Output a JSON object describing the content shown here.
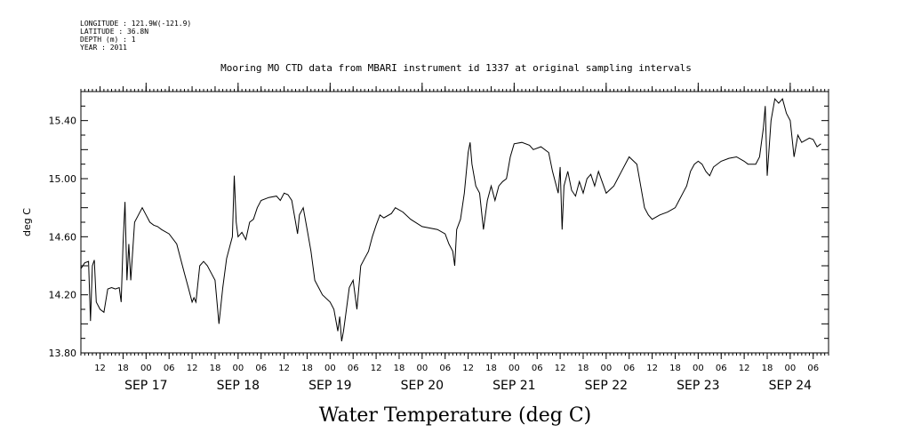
{
  "metadata": {
    "longitude": "LONGITUDE : 121.9W(-121.9)",
    "latitude": "LATITUDE : 36.8N",
    "depth": "DEPTH (m) : 1",
    "year": "YEAR : 2011"
  },
  "chart_data": {
    "type": "line",
    "title": "Mooring MO CTD data from MBARI instrument id 1337 at original sampling intervals",
    "xlabel": "Water Temperature (deg C)",
    "ylabel": "deg C",
    "ylim": [
      13.8,
      15.6
    ],
    "xlim": [
      "2011-09-16 07:00",
      "2011-09-24 10:00"
    ],
    "y_ticks": [
      "13.80",
      "14.20",
      "14.60",
      "15.00",
      "15.40"
    ],
    "hour_ticks": [
      "12",
      "18",
      "00",
      "06",
      "12",
      "18",
      "00",
      "06",
      "12",
      "18",
      "00",
      "06",
      "12",
      "18",
      "00",
      "06",
      "12",
      "18",
      "00",
      "06",
      "12",
      "18",
      "00",
      "06",
      "12",
      "18",
      "00",
      "06",
      "12",
      "18",
      "00",
      "06"
    ],
    "date_ticks": [
      {
        "label": "SEP 17",
        "x": "2011-09-17 00:00"
      },
      {
        "label": "SEP 18",
        "x": "2011-09-18 00:00"
      },
      {
        "label": "SEP 19",
        "x": "2011-09-19 00:00"
      },
      {
        "label": "SEP 20",
        "x": "2011-09-20 00:00"
      },
      {
        "label": "SEP 21",
        "x": "2011-09-21 00:00"
      },
      {
        "label": "SEP 22",
        "x": "2011-09-22 00:00"
      },
      {
        "label": "SEP 23",
        "x": "2011-09-23 00:00"
      },
      {
        "label": "SEP 24",
        "x": "2011-09-24 00:00"
      }
    ],
    "grid": false,
    "series": [
      {
        "color": "#000000",
        "points": [
          [
            "2011-09-16 07:00",
            14.38
          ],
          [
            "2011-09-16 08:00",
            14.42
          ],
          [
            "2011-09-16 09:00",
            14.43
          ],
          [
            "2011-09-16 09:30",
            14.02
          ],
          [
            "2011-09-16 10:00",
            14.4
          ],
          [
            "2011-09-16 10:30",
            14.44
          ],
          [
            "2011-09-16 11:00",
            14.15
          ],
          [
            "2011-09-16 12:00",
            14.1
          ],
          [
            "2011-09-16 13:00",
            14.08
          ],
          [
            "2011-09-16 14:00",
            14.24
          ],
          [
            "2011-09-16 15:00",
            14.25
          ],
          [
            "2011-09-16 16:00",
            14.24
          ],
          [
            "2011-09-16 17:00",
            14.25
          ],
          [
            "2011-09-16 17:30",
            14.15
          ],
          [
            "2011-09-16 18:00",
            14.55
          ],
          [
            "2011-09-16 18:30",
            14.84
          ],
          [
            "2011-09-16 19:00",
            14.3
          ],
          [
            "2011-09-16 19:30",
            14.55
          ],
          [
            "2011-09-16 20:00",
            14.3
          ],
          [
            "2011-09-16 21:00",
            14.7
          ],
          [
            "2011-09-16 22:00",
            14.75
          ],
          [
            "2011-09-16 23:00",
            14.8
          ],
          [
            "2011-09-17 00:00",
            14.75
          ],
          [
            "2011-09-17 01:00",
            14.7
          ],
          [
            "2011-09-17 02:00",
            14.68
          ],
          [
            "2011-09-17 03:00",
            14.67
          ],
          [
            "2011-09-17 04:00",
            14.65
          ],
          [
            "2011-09-17 06:00",
            14.62
          ],
          [
            "2011-09-17 08:00",
            14.55
          ],
          [
            "2011-09-17 10:00",
            14.35
          ],
          [
            "2011-09-17 11:00",
            14.25
          ],
          [
            "2011-09-17 12:00",
            14.15
          ],
          [
            "2011-09-17 12:30",
            14.18
          ],
          [
            "2011-09-17 13:00",
            14.15
          ],
          [
            "2011-09-17 14:00",
            14.4
          ],
          [
            "2011-09-17 15:00",
            14.43
          ],
          [
            "2011-09-17 16:00",
            14.4
          ],
          [
            "2011-09-17 17:00",
            14.35
          ],
          [
            "2011-09-17 18:00",
            14.3
          ],
          [
            "2011-09-17 19:00",
            14.0
          ],
          [
            "2011-09-17 20:00",
            14.25
          ],
          [
            "2011-09-17 21:00",
            14.45
          ],
          [
            "2011-09-17 22:00",
            14.55
          ],
          [
            "2011-09-17 22:30",
            14.6
          ],
          [
            "2011-09-17 23:00",
            15.02
          ],
          [
            "2011-09-17 23:30",
            14.7
          ],
          [
            "2011-09-18 00:00",
            14.6
          ],
          [
            "2011-09-18 01:00",
            14.63
          ],
          [
            "2011-09-18 02:00",
            14.58
          ],
          [
            "2011-09-18 03:00",
            14.7
          ],
          [
            "2011-09-18 04:00",
            14.72
          ],
          [
            "2011-09-18 05:00",
            14.8
          ],
          [
            "2011-09-18 06:00",
            14.85
          ],
          [
            "2011-09-18 08:00",
            14.87
          ],
          [
            "2011-09-18 10:00",
            14.88
          ],
          [
            "2011-09-18 11:00",
            14.85
          ],
          [
            "2011-09-18 12:00",
            14.9
          ],
          [
            "2011-09-18 13:00",
            14.89
          ],
          [
            "2011-09-18 14:00",
            14.85
          ],
          [
            "2011-09-18 15:00",
            14.7
          ],
          [
            "2011-09-18 15:30",
            14.62
          ],
          [
            "2011-09-18 16:00",
            14.75
          ],
          [
            "2011-09-18 17:00",
            14.8
          ],
          [
            "2011-09-18 18:00",
            14.65
          ],
          [
            "2011-09-18 19:00",
            14.5
          ],
          [
            "2011-09-18 20:00",
            14.3
          ],
          [
            "2011-09-18 21:00",
            14.25
          ],
          [
            "2011-09-18 22:00",
            14.2
          ],
          [
            "2011-09-19 00:00",
            14.15
          ],
          [
            "2011-09-19 01:00",
            14.1
          ],
          [
            "2011-09-19 02:00",
            13.95
          ],
          [
            "2011-09-19 02:30",
            14.05
          ],
          [
            "2011-09-19 03:00",
            13.88
          ],
          [
            "2011-09-19 03:30",
            13.95
          ],
          [
            "2011-09-19 04:00",
            14.05
          ],
          [
            "2011-09-19 05:00",
            14.25
          ],
          [
            "2011-09-19 06:00",
            14.3
          ],
          [
            "2011-09-19 07:00",
            14.1
          ],
          [
            "2011-09-19 08:00",
            14.4
          ],
          [
            "2011-09-19 09:00",
            14.45
          ],
          [
            "2011-09-19 10:00",
            14.5
          ],
          [
            "2011-09-19 11:00",
            14.6
          ],
          [
            "2011-09-19 12:00",
            14.68
          ],
          [
            "2011-09-19 13:00",
            14.75
          ],
          [
            "2011-09-19 14:00",
            14.73
          ],
          [
            "2011-09-19 16:00",
            14.76
          ],
          [
            "2011-09-19 17:00",
            14.8
          ],
          [
            "2011-09-19 19:00",
            14.77
          ],
          [
            "2011-09-19 21:00",
            14.72
          ],
          [
            "2011-09-20 00:00",
            14.67
          ],
          [
            "2011-09-20 04:00",
            14.65
          ],
          [
            "2011-09-20 06:00",
            14.62
          ],
          [
            "2011-09-20 07:00",
            14.55
          ],
          [
            "2011-09-20 08:00",
            14.5
          ],
          [
            "2011-09-20 08:30",
            14.4
          ],
          [
            "2011-09-20 09:00",
            14.65
          ],
          [
            "2011-09-20 10:00",
            14.72
          ],
          [
            "2011-09-20 11:00",
            14.9
          ],
          [
            "2011-09-20 12:00",
            15.18
          ],
          [
            "2011-09-20 12:30",
            15.25
          ],
          [
            "2011-09-20 13:00",
            15.1
          ],
          [
            "2011-09-20 14:00",
            14.95
          ],
          [
            "2011-09-20 15:00",
            14.9
          ],
          [
            "2011-09-20 16:00",
            14.65
          ],
          [
            "2011-09-20 17:00",
            14.85
          ],
          [
            "2011-09-20 18:00",
            14.95
          ],
          [
            "2011-09-20 19:00",
            14.85
          ],
          [
            "2011-09-20 20:00",
            14.95
          ],
          [
            "2011-09-20 21:00",
            14.98
          ],
          [
            "2011-09-20 22:00",
            15.0
          ],
          [
            "2011-09-20 23:00",
            15.15
          ],
          [
            "2011-09-21 00:00",
            15.24
          ],
          [
            "2011-09-21 02:00",
            15.25
          ],
          [
            "2011-09-21 04:00",
            15.23
          ],
          [
            "2011-09-21 05:00",
            15.2
          ],
          [
            "2011-09-21 07:00",
            15.22
          ],
          [
            "2011-09-21 09:00",
            15.18
          ],
          [
            "2011-09-21 10:00",
            15.05
          ],
          [
            "2011-09-21 11:00",
            14.95
          ],
          [
            "2011-09-21 11:30",
            14.9
          ],
          [
            "2011-09-21 12:00",
            15.08
          ],
          [
            "2011-09-21 12:30",
            14.65
          ],
          [
            "2011-09-21 13:00",
            14.95
          ],
          [
            "2011-09-21 14:00",
            15.05
          ],
          [
            "2011-09-21 15:00",
            14.92
          ],
          [
            "2011-09-21 16:00",
            14.88
          ],
          [
            "2011-09-21 17:00",
            14.98
          ],
          [
            "2011-09-21 18:00",
            14.9
          ],
          [
            "2011-09-21 19:00",
            15.0
          ],
          [
            "2011-09-21 20:00",
            15.03
          ],
          [
            "2011-09-21 21:00",
            14.95
          ],
          [
            "2011-09-21 22:00",
            15.05
          ],
          [
            "2011-09-22 00:00",
            14.9
          ],
          [
            "2011-09-22 02:00",
            14.95
          ],
          [
            "2011-09-22 03:00",
            15.0
          ],
          [
            "2011-09-22 04:00",
            15.05
          ],
          [
            "2011-09-22 06:00",
            15.15
          ],
          [
            "2011-09-22 08:00",
            15.1
          ],
          [
            "2011-09-22 09:00",
            14.95
          ],
          [
            "2011-09-22 10:00",
            14.8
          ],
          [
            "2011-09-22 11:00",
            14.75
          ],
          [
            "2011-09-22 12:00",
            14.72
          ],
          [
            "2011-09-22 14:00",
            14.75
          ],
          [
            "2011-09-22 16:00",
            14.77
          ],
          [
            "2011-09-22 18:00",
            14.8
          ],
          [
            "2011-09-22 19:00",
            14.85
          ],
          [
            "2011-09-22 20:00",
            14.9
          ],
          [
            "2011-09-22 21:00",
            14.95
          ],
          [
            "2011-09-22 22:00",
            15.05
          ],
          [
            "2011-09-22 23:00",
            15.1
          ],
          [
            "2011-09-23 00:00",
            15.12
          ],
          [
            "2011-09-23 01:00",
            15.1
          ],
          [
            "2011-09-23 02:00",
            15.05
          ],
          [
            "2011-09-23 03:00",
            15.02
          ],
          [
            "2011-09-23 04:00",
            15.08
          ],
          [
            "2011-09-23 06:00",
            15.12
          ],
          [
            "2011-09-23 08:00",
            15.14
          ],
          [
            "2011-09-23 10:00",
            15.15
          ],
          [
            "2011-09-23 12:00",
            15.12
          ],
          [
            "2011-09-23 13:00",
            15.1
          ],
          [
            "2011-09-23 15:00",
            15.1
          ],
          [
            "2011-09-23 16:00",
            15.15
          ],
          [
            "2011-09-23 17:00",
            15.35
          ],
          [
            "2011-09-23 17:30",
            15.5
          ],
          [
            "2011-09-23 18:00",
            15.02
          ],
          [
            "2011-09-23 19:00",
            15.4
          ],
          [
            "2011-09-23 20:00",
            15.55
          ],
          [
            "2011-09-23 21:00",
            15.52
          ],
          [
            "2011-09-23 22:00",
            15.55
          ],
          [
            "2011-09-23 23:00",
            15.45
          ],
          [
            "2011-09-24 00:00",
            15.4
          ],
          [
            "2011-09-24 01:00",
            15.15
          ],
          [
            "2011-09-24 02:00",
            15.3
          ],
          [
            "2011-09-24 03:00",
            15.25
          ],
          [
            "2011-09-24 05:00",
            15.28
          ],
          [
            "2011-09-24 06:00",
            15.27
          ],
          [
            "2011-09-24 07:00",
            15.22
          ],
          [
            "2011-09-24 08:00",
            15.24
          ]
        ]
      }
    ]
  }
}
